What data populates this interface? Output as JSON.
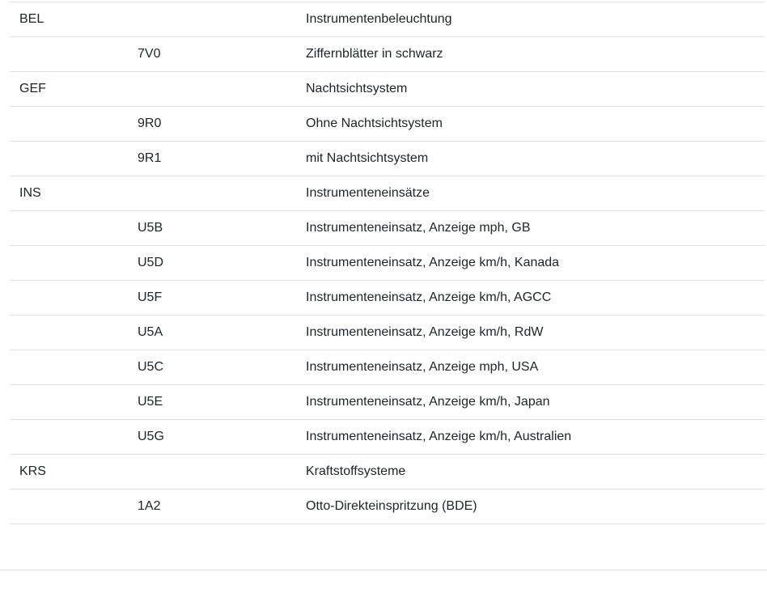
{
  "table": {
    "columns": [
      "family",
      "code",
      "description"
    ],
    "rows": [
      {
        "family": "BEL",
        "code": "",
        "description": "Instrumentenbeleuchtung"
      },
      {
        "family": "",
        "code": "7V0",
        "description": "Ziffernblätter in schwarz"
      },
      {
        "family": "GEF",
        "code": "",
        "description": "Nachtsichtsystem"
      },
      {
        "family": "",
        "code": "9R0",
        "description": "Ohne Nachtsichtsystem"
      },
      {
        "family": "",
        "code": "9R1",
        "description": "mit Nachtsichtsystem"
      },
      {
        "family": "INS",
        "code": "",
        "description": "Instrumenteneinsätze"
      },
      {
        "family": "",
        "code": "U5B",
        "description": "Instrumenteneinsatz, Anzeige mph, GB"
      },
      {
        "family": "",
        "code": "U5D",
        "description": "Instrumenteneinsatz, Anzeige km/h, Kanada"
      },
      {
        "family": "",
        "code": "U5F",
        "description": "Instrumenteneinsatz, Anzeige km/h, AGCC"
      },
      {
        "family": "",
        "code": "U5A",
        "description": "Instrumenteneinsatz, Anzeige km/h, RdW"
      },
      {
        "family": "",
        "code": "U5C",
        "description": "Instrumenteneinsatz, Anzeige mph, USA"
      },
      {
        "family": "",
        "code": "U5E",
        "description": "Instrumenteneinsatz, Anzeige km/h, Japan"
      },
      {
        "family": "",
        "code": "U5G",
        "description": "Instrumenteneinsatz, Anzeige km/h, Australien"
      },
      {
        "family": "KRS",
        "code": "",
        "description": "Kraftstoffsysteme"
      },
      {
        "family": "",
        "code": "1A2",
        "description": "Otto-Direkteinspritzung (BDE)"
      }
    ]
  },
  "colors": {
    "row_border": "#dee2e6",
    "page_divider": "#dadce0",
    "text": "#212529",
    "background": "#ffffff"
  }
}
